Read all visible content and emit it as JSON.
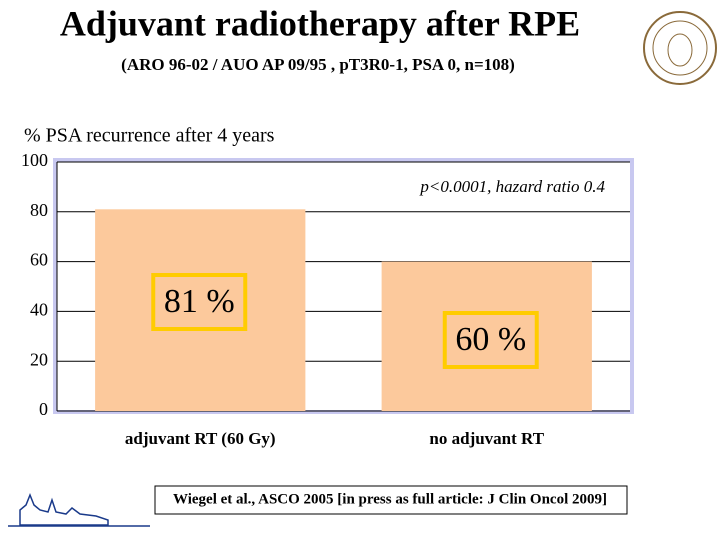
{
  "chart_data": {
    "type": "bar",
    "title": "Adjuvant radiotherapy after RPE",
    "subtitle": "(ARO 96-02 / AUO AP 09/95 , pT3R0-1, PSA 0, n=108)",
    "y_label": "% PSA recurrence after 4 years",
    "annotation": "p<0.0001, hazard ratio 0.4",
    "source": "Wiegel et al., ASCO 2005 [in press as full article: J Clin Oncol 2009]",
    "categories": [
      "adjuvant RT (60 Gy)",
      "no adjuvant RT"
    ],
    "values": [
      81,
      60
    ],
    "value_labels": [
      "81 %",
      "60 %"
    ],
    "color": "#fcc99c",
    "ylim": [
      0,
      100
    ],
    "yticks": [
      0,
      20,
      40,
      60,
      80,
      100
    ],
    "grid": true
  }
}
